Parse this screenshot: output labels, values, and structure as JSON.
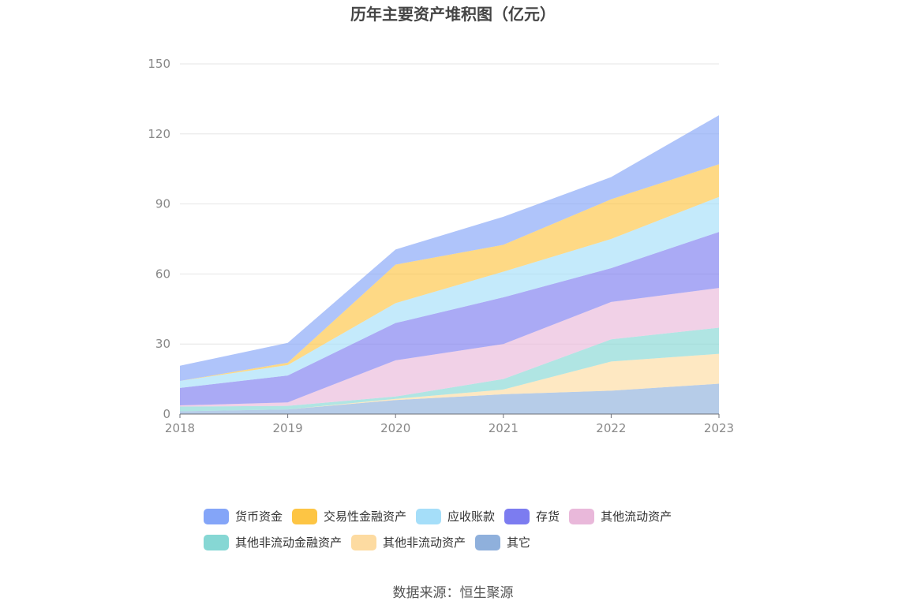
{
  "chart_data": {
    "type": "area",
    "stacked": true,
    "title": "历年主要资产堆积图（亿元）",
    "x": [
      "2018",
      "2019",
      "2020",
      "2021",
      "2022",
      "2023"
    ],
    "ylim": [
      0,
      150
    ],
    "yticks": [
      0,
      30,
      60,
      90,
      120,
      150
    ],
    "grid": true,
    "legend_position": "bottom",
    "series": [
      {
        "name": "其它",
        "color": "#8fb0dc",
        "values": [
          1.2,
          2,
          6,
          8.5,
          10,
          13
        ]
      },
      {
        "name": "其他非流动资产",
        "color": "#fddba1",
        "values": [
          0,
          0,
          0.5,
          2,
          12.5,
          12.8
        ]
      },
      {
        "name": "其他非流动金融资产",
        "color": "#86d7d4",
        "values": [
          2,
          1.5,
          1,
          4.5,
          9.5,
          11.2
        ]
      },
      {
        "name": "其他流动资产",
        "color": "#e9b8da",
        "values": [
          0.5,
          1.5,
          15.5,
          15,
          16,
          17
        ]
      },
      {
        "name": "存货",
        "color": "#7c7cf0",
        "values": [
          7.5,
          11.5,
          16,
          20,
          14.5,
          24
        ]
      },
      {
        "name": "应收账款",
        "color": "#a5def9",
        "values": [
          3,
          4.5,
          8.5,
          11,
          12.5,
          15
        ]
      },
      {
        "name": "交易性金融资产",
        "color": "#fdc544",
        "values": [
          0,
          1,
          16.5,
          11.5,
          17,
          14
        ]
      },
      {
        "name": "货币资金",
        "color": "#84a5f8",
        "values": [
          6.5,
          8.5,
          6.5,
          12,
          9.5,
          21
        ]
      }
    ]
  },
  "legend": {
    "row1": [
      {
        "label": "货币资金",
        "color": "#84a5f8"
      },
      {
        "label": "交易性金融资产",
        "color": "#fdc544"
      },
      {
        "label": "应收账款",
        "color": "#a5def9"
      },
      {
        "label": "存货",
        "color": "#7c7cf0"
      },
      {
        "label": "其他流动资产",
        "color": "#e9b8da"
      }
    ],
    "row2": [
      {
        "label": "其他非流动金融资产",
        "color": "#86d7d4"
      },
      {
        "label": "其他非流动资产",
        "color": "#fddba1"
      },
      {
        "label": "其它",
        "color": "#8fb0dc"
      }
    ]
  },
  "source": "数据来源：恒生聚源"
}
